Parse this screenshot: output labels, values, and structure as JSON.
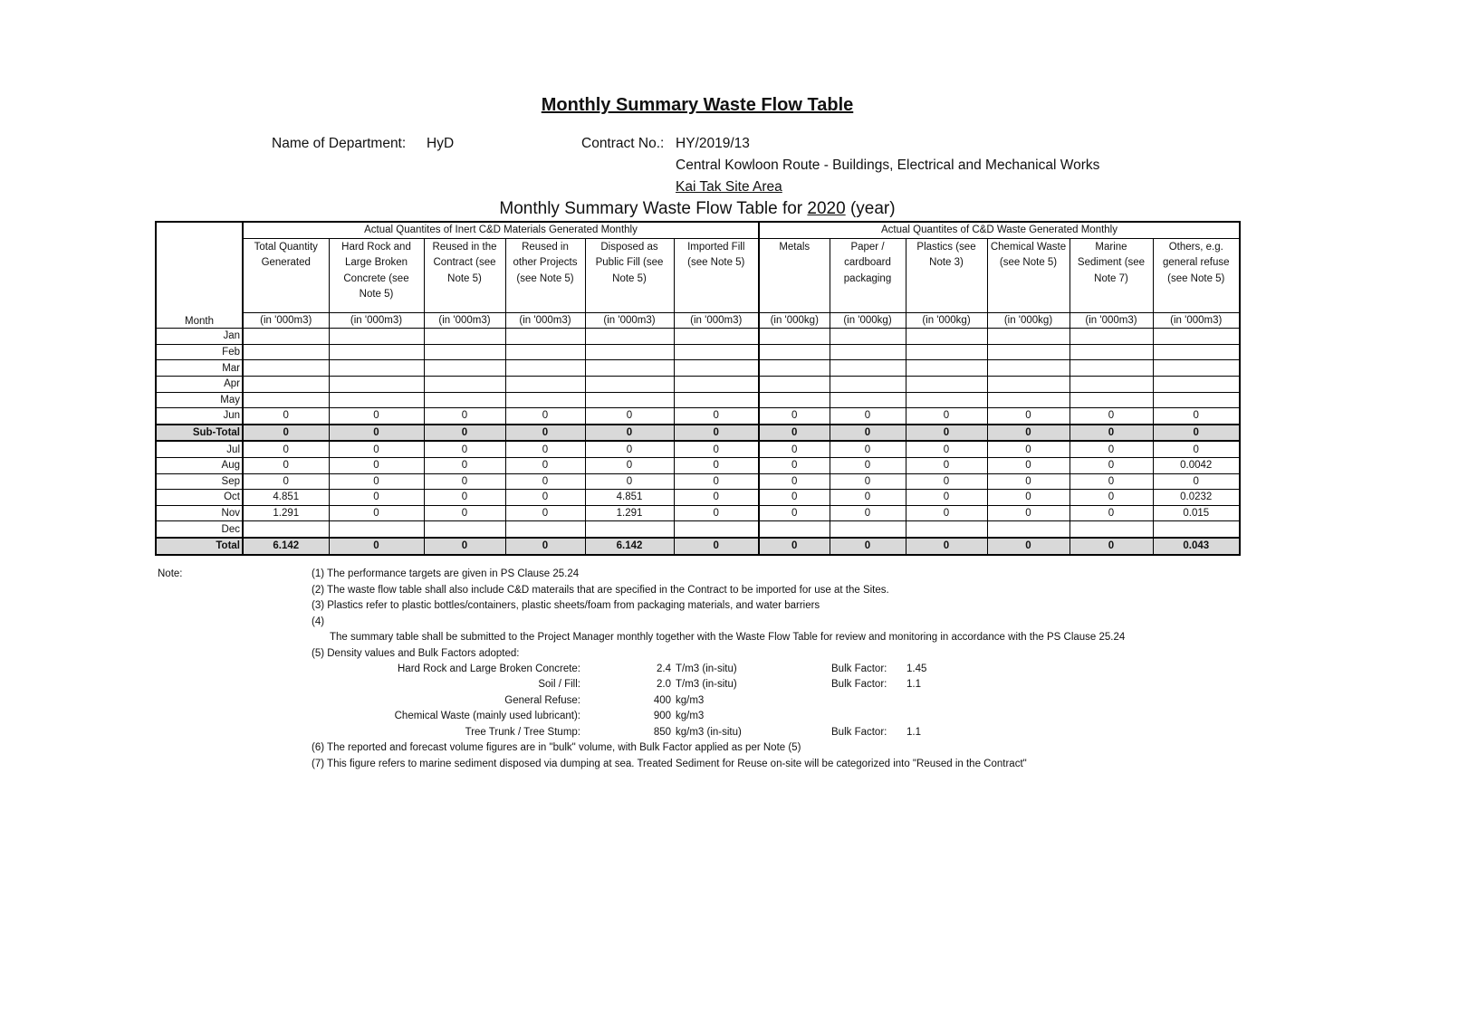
{
  "title": "Monthly Summary Waste Flow Table",
  "department_label": "Name of Department:",
  "department": "HyD",
  "contract_label": "Contract No.:",
  "contract_no": "HY/2019/13",
  "contract_name": "Central Kowloon Route - Buildings, Electrical and Mechanical Works",
  "site_area": "Kai Tak Site Area",
  "table_title_prefix": "Monthly Summary Waste Flow Table for",
  "year": "2020",
  "table_title_suffix": "(year)",
  "table": {
    "month_header": "Month",
    "group_inert": "Actual Quantites of Inert C&D Materials Generated Monthly",
    "group_waste": "Actual Quantites of C&D Waste Generated Monthly",
    "columns": [
      {
        "label": "Total Quantity Generated",
        "unit": "(in '000m3)"
      },
      {
        "label": "Hard Rock and Large Broken Concrete (see Note 5)",
        "unit": "(in '000m3)"
      },
      {
        "label": "Reused in the Contract (see Note 5)",
        "unit": "(in '000m3)"
      },
      {
        "label": "Reused in other Projects (see Note 5)",
        "unit": "(in '000m3)"
      },
      {
        "label": "Disposed as Public Fill (see Note 5)",
        "unit": "(in '000m3)"
      },
      {
        "label": "Imported Fill (see Note 5)",
        "unit": "(in '000m3)"
      },
      {
        "label": "Metals",
        "unit": "(in '000kg)"
      },
      {
        "label": "Paper / cardboard packaging",
        "unit": "(in '000kg)"
      },
      {
        "label": "Plastics (see Note 3)",
        "unit": "(in '000kg)"
      },
      {
        "label": "Chemical Waste (see Note 5)",
        "unit": "(in '000kg)"
      },
      {
        "label": "Marine Sediment (see Note 7)",
        "unit": "(in '000m3)"
      },
      {
        "label": "Others, e.g. general refuse (see Note 5)",
        "unit": "(in '000m3)"
      }
    ],
    "rows": [
      {
        "month": "Jan",
        "values": [
          "",
          "",
          "",
          "",
          "",
          "",
          "",
          "",
          "",
          "",
          "",
          ""
        ]
      },
      {
        "month": "Feb",
        "values": [
          "",
          "",
          "",
          "",
          "",
          "",
          "",
          "",
          "",
          "",
          "",
          ""
        ]
      },
      {
        "month": "Mar",
        "values": [
          "",
          "",
          "",
          "",
          "",
          "",
          "",
          "",
          "",
          "",
          "",
          ""
        ]
      },
      {
        "month": "Apr",
        "values": [
          "",
          "",
          "",
          "",
          "",
          "",
          "",
          "",
          "",
          "",
          "",
          ""
        ]
      },
      {
        "month": "May",
        "values": [
          "",
          "",
          "",
          "",
          "",
          "",
          "",
          "",
          "",
          "",
          "",
          ""
        ]
      },
      {
        "month": "Jun",
        "values": [
          "0",
          "0",
          "0",
          "0",
          "0",
          "0",
          "0",
          "0",
          "0",
          "0",
          "0",
          "0"
        ]
      },
      {
        "month": "Sub-Total",
        "type": "subtotal",
        "values": [
          "0",
          "0",
          "0",
          "0",
          "0",
          "0",
          "0",
          "0",
          "0",
          "0",
          "0",
          "0"
        ]
      },
      {
        "month": "Jul",
        "values": [
          "0",
          "0",
          "0",
          "0",
          "0",
          "0",
          "0",
          "0",
          "0",
          "0",
          "0",
          "0"
        ]
      },
      {
        "month": "Aug",
        "values": [
          "0",
          "0",
          "0",
          "0",
          "0",
          "0",
          "0",
          "0",
          "0",
          "0",
          "0",
          "0.0042"
        ]
      },
      {
        "month": "Sep",
        "values": [
          "0",
          "0",
          "0",
          "0",
          "0",
          "0",
          "0",
          "0",
          "0",
          "0",
          "0",
          "0"
        ]
      },
      {
        "month": "Oct",
        "values": [
          "4.851",
          "0",
          "0",
          "0",
          "4.851",
          "0",
          "0",
          "0",
          "0",
          "0",
          "0",
          "0.0232"
        ]
      },
      {
        "month": "Nov",
        "values": [
          "1.291",
          "0",
          "0",
          "0",
          "1.291",
          "0",
          "0",
          "0",
          "0",
          "0",
          "0",
          "0.015"
        ]
      },
      {
        "month": "Dec",
        "values": [
          "",
          "",
          "",
          "",
          "",
          "",
          "",
          "",
          "",
          "",
          "",
          ""
        ]
      },
      {
        "month": "Total",
        "type": "total",
        "values": [
          "6.142",
          "0",
          "0",
          "0",
          "6.142",
          "0",
          "0",
          "0",
          "0",
          "0",
          "0",
          "0.043"
        ]
      }
    ]
  },
  "notes": {
    "label": "Note:",
    "n1": "(1) The performance targets are given in PS Clause 25.24",
    "n2": "(2) The waste flow table shall also include C&D materails that are specified in the Contract to be imported for use at the Sites.",
    "n3": "(3) Plastics refer to plastic bottles/containers, plastic sheets/foam from packaging materials, and water barriers",
    "n4": "(4)",
    "n4_text": "The summary table shall be submitted to the Project Manager monthly together with the Waste Flow Table for review and monitoring in accordance with the PS Clause 25.24",
    "n5": "(5) Density values and Bulk Factors adopted:",
    "densities": [
      {
        "material": "Hard Rock and Large Broken Concrete:",
        "value": "2.4",
        "unit": "T/m3 (in-situ)",
        "bulk_label": "Bulk Factor:",
        "bulk": "1.45"
      },
      {
        "material": "Soil / Fill:",
        "value": "2.0",
        "unit": "T/m3 (in-situ)",
        "bulk_label": "Bulk Factor:",
        "bulk": "1.1"
      },
      {
        "material": "General Refuse:",
        "value": "400",
        "unit": "kg/m3",
        "bulk_label": "",
        "bulk": ""
      },
      {
        "material": "Chemical Waste (mainly used lubricant):",
        "value": "900",
        "unit": "kg/m3",
        "bulk_label": "",
        "bulk": ""
      },
      {
        "material": "Tree Trunk / Tree Stump:",
        "value": "850",
        "unit": "kg/m3 (in-situ)",
        "bulk_label": "Bulk Factor:",
        "bulk": "1.1"
      }
    ],
    "n6": "(6) The reported and forecast volume figures are in \"bulk\" volume, with Bulk Factor applied as per Note (5)",
    "n7": "(7) This figure refers to marine sediment disposed via dumping at sea. Treated Sediment for Reuse on-site will be categorized into \"Reused in the Contract\""
  }
}
